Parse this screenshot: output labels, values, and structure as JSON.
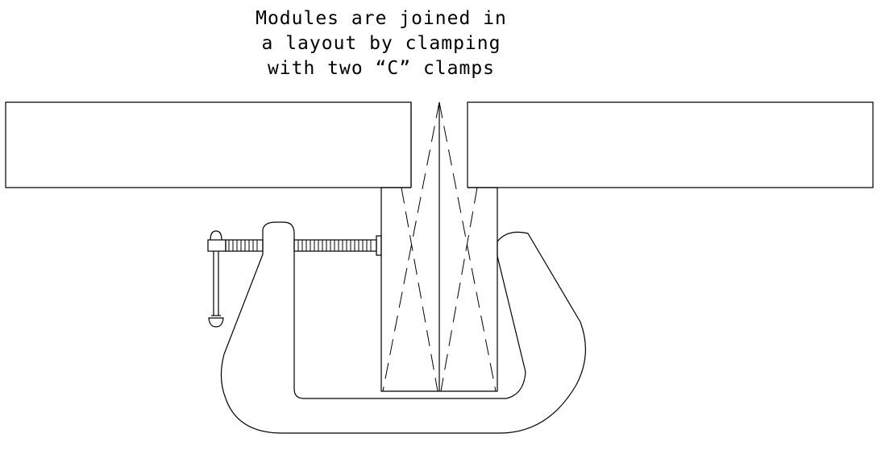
{
  "caption": {
    "line1": "Modules are joined in",
    "line2": "a layout by clamping",
    "line3": "with two “C” clamps"
  },
  "colors": {
    "line": "#000000",
    "background": "#ffffff"
  }
}
